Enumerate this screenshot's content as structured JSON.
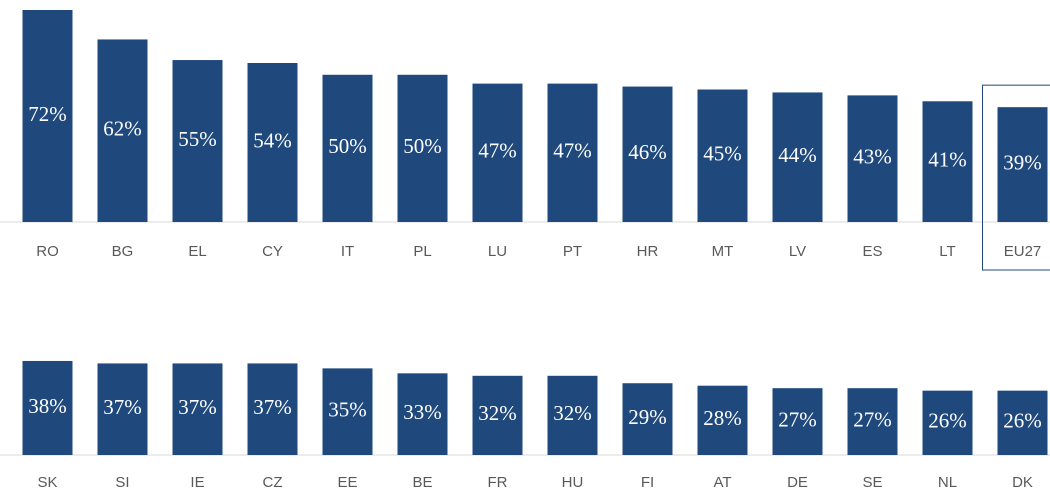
{
  "chart_data": [
    {
      "type": "bar",
      "color": "#1f497d",
      "highlight": "EU27",
      "ylim": [
        0,
        72
      ],
      "categories": [
        "RO",
        "BG",
        "EL",
        "CY",
        "IT",
        "PL",
        "LU",
        "PT",
        "HR",
        "MT",
        "LV",
        "ES",
        "LT",
        "EU27"
      ],
      "values": [
        72,
        62,
        55,
        54,
        50,
        50,
        47,
        47,
        46,
        45,
        44,
        43,
        41,
        39
      ],
      "value_labels": [
        "72%",
        "62%",
        "55%",
        "54%",
        "50%",
        "50%",
        "47%",
        "47%",
        "46%",
        "45%",
        "44%",
        "43%",
        "41%",
        "39%"
      ]
    },
    {
      "type": "bar",
      "color": "#1f497d",
      "ylim": [
        0,
        80
      ],
      "categories": [
        "SK",
        "SI",
        "IE",
        "CZ",
        "EE",
        "BE",
        "FR",
        "HU",
        "FI",
        "AT",
        "DE",
        "SE",
        "NL",
        "DK"
      ],
      "values": [
        38,
        37,
        37,
        37,
        35,
        33,
        32,
        32,
        29,
        28,
        27,
        27,
        26,
        26
      ],
      "value_labels": [
        "38%",
        "37%",
        "37%",
        "37%",
        "35%",
        "33%",
        "32%",
        "32%",
        "29%",
        "28%",
        "27%",
        "27%",
        "26%",
        "26%"
      ]
    }
  ]
}
